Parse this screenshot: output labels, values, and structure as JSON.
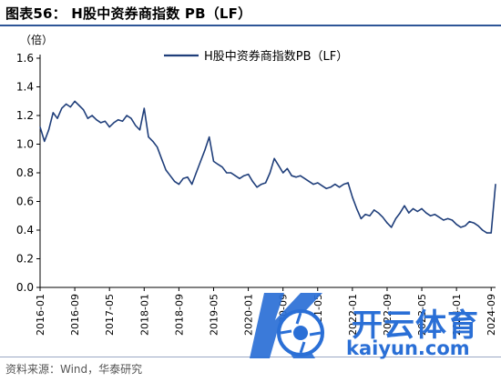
{
  "figure": {
    "title": "图表56：  H股中资券商指数 PB（LF）",
    "source": "资料来源：Wind，华泰研究"
  },
  "watermark": {
    "brand_cn": "开云体育",
    "brand_url": "kaiyun.com"
  },
  "colors": {
    "series": "#1f3e7a",
    "title_rule": "#2e5597",
    "axis": "#000000"
  },
  "chart_data": {
    "type": "line",
    "unit_label": "（倍）",
    "ylim": [
      0.0,
      1.6
    ],
    "yticks": [
      "0.0",
      "0.2",
      "0.4",
      "0.6",
      "0.8",
      "1.0",
      "1.2",
      "1.4",
      "1.6"
    ],
    "xlim": [
      "2016-01",
      "2024-10"
    ],
    "xticks": [
      "2016-01",
      "2016-09",
      "2017-05",
      "2018-01",
      "2018-09",
      "2019-05",
      "2020-01",
      "2020-09",
      "2021-05",
      "2022-01",
      "2022-09",
      "2023-05",
      "2024-01",
      "2024-09"
    ],
    "legend_position": "top",
    "grid": false,
    "series": [
      {
        "name": "H股中资券商指数PB（LF）",
        "x": [
          "2016-01",
          "2016-02",
          "2016-03",
          "2016-04",
          "2016-05",
          "2016-06",
          "2016-07",
          "2016-08",
          "2016-09",
          "2016-10",
          "2016-11",
          "2016-12",
          "2017-01",
          "2017-02",
          "2017-03",
          "2017-04",
          "2017-05",
          "2017-06",
          "2017-07",
          "2017-08",
          "2017-09",
          "2017-10",
          "2017-11",
          "2017-12",
          "2018-01",
          "2018-02",
          "2018-03",
          "2018-04",
          "2018-05",
          "2018-06",
          "2018-07",
          "2018-08",
          "2018-09",
          "2018-10",
          "2018-11",
          "2018-12",
          "2019-01",
          "2019-02",
          "2019-03",
          "2019-04",
          "2019-05",
          "2019-06",
          "2019-07",
          "2019-08",
          "2019-09",
          "2019-10",
          "2019-11",
          "2019-12",
          "2020-01",
          "2020-02",
          "2020-03",
          "2020-04",
          "2020-05",
          "2020-06",
          "2020-07",
          "2020-08",
          "2020-09",
          "2020-10",
          "2020-11",
          "2020-12",
          "2021-01",
          "2021-02",
          "2021-03",
          "2021-04",
          "2021-05",
          "2021-06",
          "2021-07",
          "2021-08",
          "2021-09",
          "2021-10",
          "2021-11",
          "2021-12",
          "2022-01",
          "2022-02",
          "2022-03",
          "2022-04",
          "2022-05",
          "2022-06",
          "2022-07",
          "2022-08",
          "2022-09",
          "2022-10",
          "2022-11",
          "2022-12",
          "2023-01",
          "2023-02",
          "2023-03",
          "2023-04",
          "2023-05",
          "2023-06",
          "2023-07",
          "2023-08",
          "2023-09",
          "2023-10",
          "2023-11",
          "2023-12",
          "2024-01",
          "2024-02",
          "2024-03",
          "2024-04",
          "2024-05",
          "2024-06",
          "2024-07",
          "2024-08",
          "2024-09",
          "2024-10"
        ],
        "values": [
          1.12,
          1.02,
          1.1,
          1.22,
          1.18,
          1.25,
          1.28,
          1.26,
          1.3,
          1.27,
          1.24,
          1.18,
          1.2,
          1.17,
          1.15,
          1.16,
          1.12,
          1.15,
          1.17,
          1.16,
          1.2,
          1.18,
          1.13,
          1.1,
          1.25,
          1.05,
          1.02,
          0.98,
          0.9,
          0.82,
          0.78,
          0.74,
          0.72,
          0.76,
          0.77,
          0.72,
          0.8,
          0.88,
          0.96,
          1.05,
          0.88,
          0.86,
          0.84,
          0.8,
          0.8,
          0.78,
          0.76,
          0.78,
          0.79,
          0.74,
          0.7,
          0.72,
          0.73,
          0.8,
          0.9,
          0.85,
          0.8,
          0.83,
          0.78,
          0.77,
          0.78,
          0.76,
          0.74,
          0.72,
          0.73,
          0.71,
          0.69,
          0.7,
          0.72,
          0.7,
          0.72,
          0.73,
          0.63,
          0.55,
          0.48,
          0.51,
          0.5,
          0.54,
          0.52,
          0.49,
          0.45,
          0.42,
          0.48,
          0.52,
          0.57,
          0.52,
          0.55,
          0.53,
          0.55,
          0.52,
          0.5,
          0.51,
          0.49,
          0.47,
          0.48,
          0.47,
          0.44,
          0.42,
          0.43,
          0.46,
          0.45,
          0.43,
          0.4,
          0.38,
          0.38,
          0.72
        ]
      }
    ]
  }
}
